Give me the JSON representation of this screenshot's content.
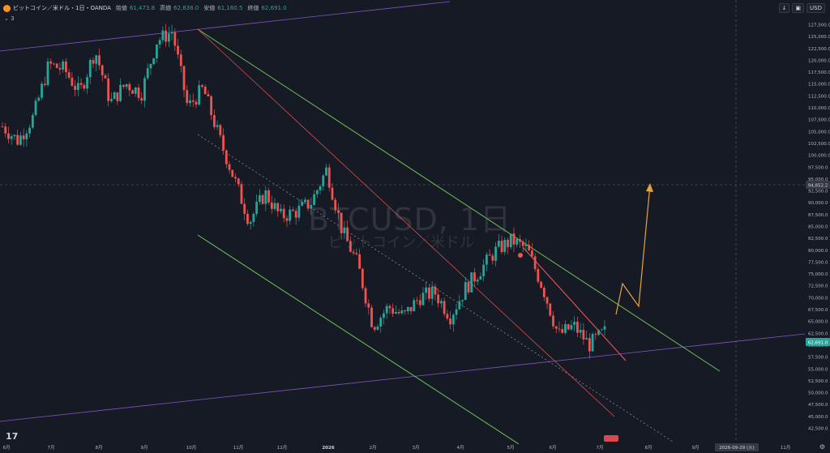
{
  "header": {
    "symbol": "ビットコイン／米ドル・1日・OANDA",
    "open_label": "始値",
    "open_value": "61,473.8",
    "high_label": "高値",
    "high_value": "62,838.0",
    "low_label": "安値",
    "low_value": "61,160.5",
    "close_label": "終値",
    "close_value": "62,691.0",
    "indicators_count": "3",
    "currency": "USD",
    "down_arrow": "↓"
  },
  "watermark": {
    "main": "BTCUSD, 1日",
    "sub": "ビットコイン／米ドル"
  },
  "footer": {
    "logo": "17",
    "gear": "⚙"
  },
  "colors": {
    "background": "#161a25",
    "up": "#26a69a",
    "down": "#ef5350",
    "channel": "#6fbf58",
    "wedge": "#ef5350",
    "purple": "#7e57c2",
    "projection": "#e8a33d"
  },
  "chart_data": {
    "type": "candlestick",
    "title": "BTCUSD, 1日",
    "ylim": [
      40000,
      130000
    ],
    "y_ticks": [
      "127,500.0",
      "125,000.0",
      "122,500.0",
      "120,000.0",
      "117,500.0",
      "115,000.0",
      "112,500.0",
      "110,000.0",
      "107,500.0",
      "105,000.0",
      "102,500.0",
      "100,000.0",
      "97,500.0",
      "95,000.0",
      "92,500.0",
      "90,000.0",
      "87,500.0",
      "85,000.0",
      "82,500.0",
      "80,000.0",
      "77,500.0",
      "75,000.0",
      "72,500.0",
      "70,000.0",
      "67,500.0",
      "65,000.0",
      "62,500.0",
      "60,000.0",
      "57,500.0",
      "55,000.0",
      "52,500.0",
      "50,000.0",
      "47,500.0",
      "45,000.0",
      "42,500.0"
    ],
    "x_ticks": [
      "6月",
      "7月",
      "8月",
      "9月",
      "10月",
      "11月",
      "12月",
      "2026",
      "2月",
      "3月",
      "4月",
      "5月",
      "6月",
      "7月",
      "8月",
      "9月",
      "10月",
      "11月"
    ],
    "crosshair_price_label": "94,852.2",
    "last_price_label": "62,691.0",
    "crosshair_date_label": "2026-09-29 (火)",
    "waypoints": [
      {
        "x": "6月",
        "y": 106000
      },
      {
        "x": "6月中",
        "y": 103000
      },
      {
        "x": "7月",
        "y": 108000
      },
      {
        "x": "7月中",
        "y": 119000
      },
      {
        "x": "8月",
        "y": 118000
      },
      {
        "x": "8月中",
        "y": 113000
      },
      {
        "x": "8月末",
        "y": 122000
      },
      {
        "x": "9月",
        "y": 111000
      },
      {
        "x": "9月中",
        "y": 115000
      },
      {
        "x": "9月末",
        "y": 113000
      },
      {
        "x": "10月",
        "y": 124000
      },
      {
        "x": "10月上",
        "y": 126000
      },
      {
        "x": "10月中",
        "y": 110000
      },
      {
        "x": "10月末",
        "y": 114000
      },
      {
        "x": "11月",
        "y": 104000
      },
      {
        "x": "11月中",
        "y": 95000
      },
      {
        "x": "11月末",
        "y": 86000
      },
      {
        "x": "12月",
        "y": 92000
      },
      {
        "x": "12月中",
        "y": 87000
      },
      {
        "x": "12月末",
        "y": 88000
      },
      {
        "x": "2026",
        "y": 90000
      },
      {
        "x": "1月中",
        "y": 97000
      },
      {
        "x": "1月末",
        "y": 84000
      },
      {
        "x": "2月",
        "y": 77000
      },
      {
        "x": "2月上",
        "y": 64000
      },
      {
        "x": "2月中",
        "y": 68000
      },
      {
        "x": "2月末",
        "y": 66000
      },
      {
        "x": "3月",
        "y": 70000
      },
      {
        "x": "3月中",
        "y": 71000
      },
      {
        "x": "3月末",
        "y": 66000
      },
      {
        "x": "4月",
        "y": 72000
      },
      {
        "x": "4月中",
        "y": 76000
      },
      {
        "x": "4月末",
        "y": 80000
      },
      {
        "x": "5月",
        "y": 82000
      },
      {
        "x": "5月中",
        "y": 80000
      },
      {
        "x": "5月末",
        "y": 72000
      },
      {
        "x": "6月",
        "y": 62000
      },
      {
        "x": "6月中",
        "y": 64000
      },
      {
        "x": "6月末",
        "y": 60000
      },
      {
        "x": "7月",
        "y": 62691
      }
    ]
  }
}
